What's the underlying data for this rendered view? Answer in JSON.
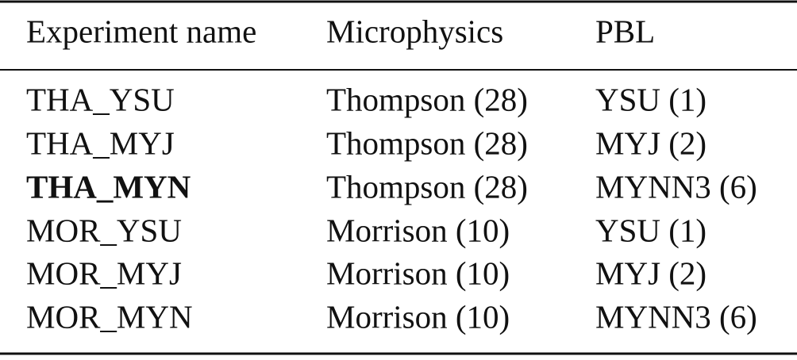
{
  "table": {
    "header": [
      "Experiment name",
      "Microphysics",
      "PBL"
    ],
    "rows": [
      [
        "THA_YSU",
        "Thompson (28)",
        "YSU (1)"
      ],
      [
        "THA_MYJ",
        "Thompson (28)",
        "MYJ (2)"
      ],
      [
        "THA_MYN",
        "Thompson (28)",
        "MYNN3 (6)"
      ],
      [
        "MOR_YSU",
        "Morrison (10)",
        "YSU (1)"
      ],
      [
        "MOR_MYJ",
        "Morrison (10)",
        "MYJ (2)"
      ],
      [
        "MOR_MYN",
        "Morrison (10)",
        "MYNN3 (6)"
      ]
    ]
  }
}
